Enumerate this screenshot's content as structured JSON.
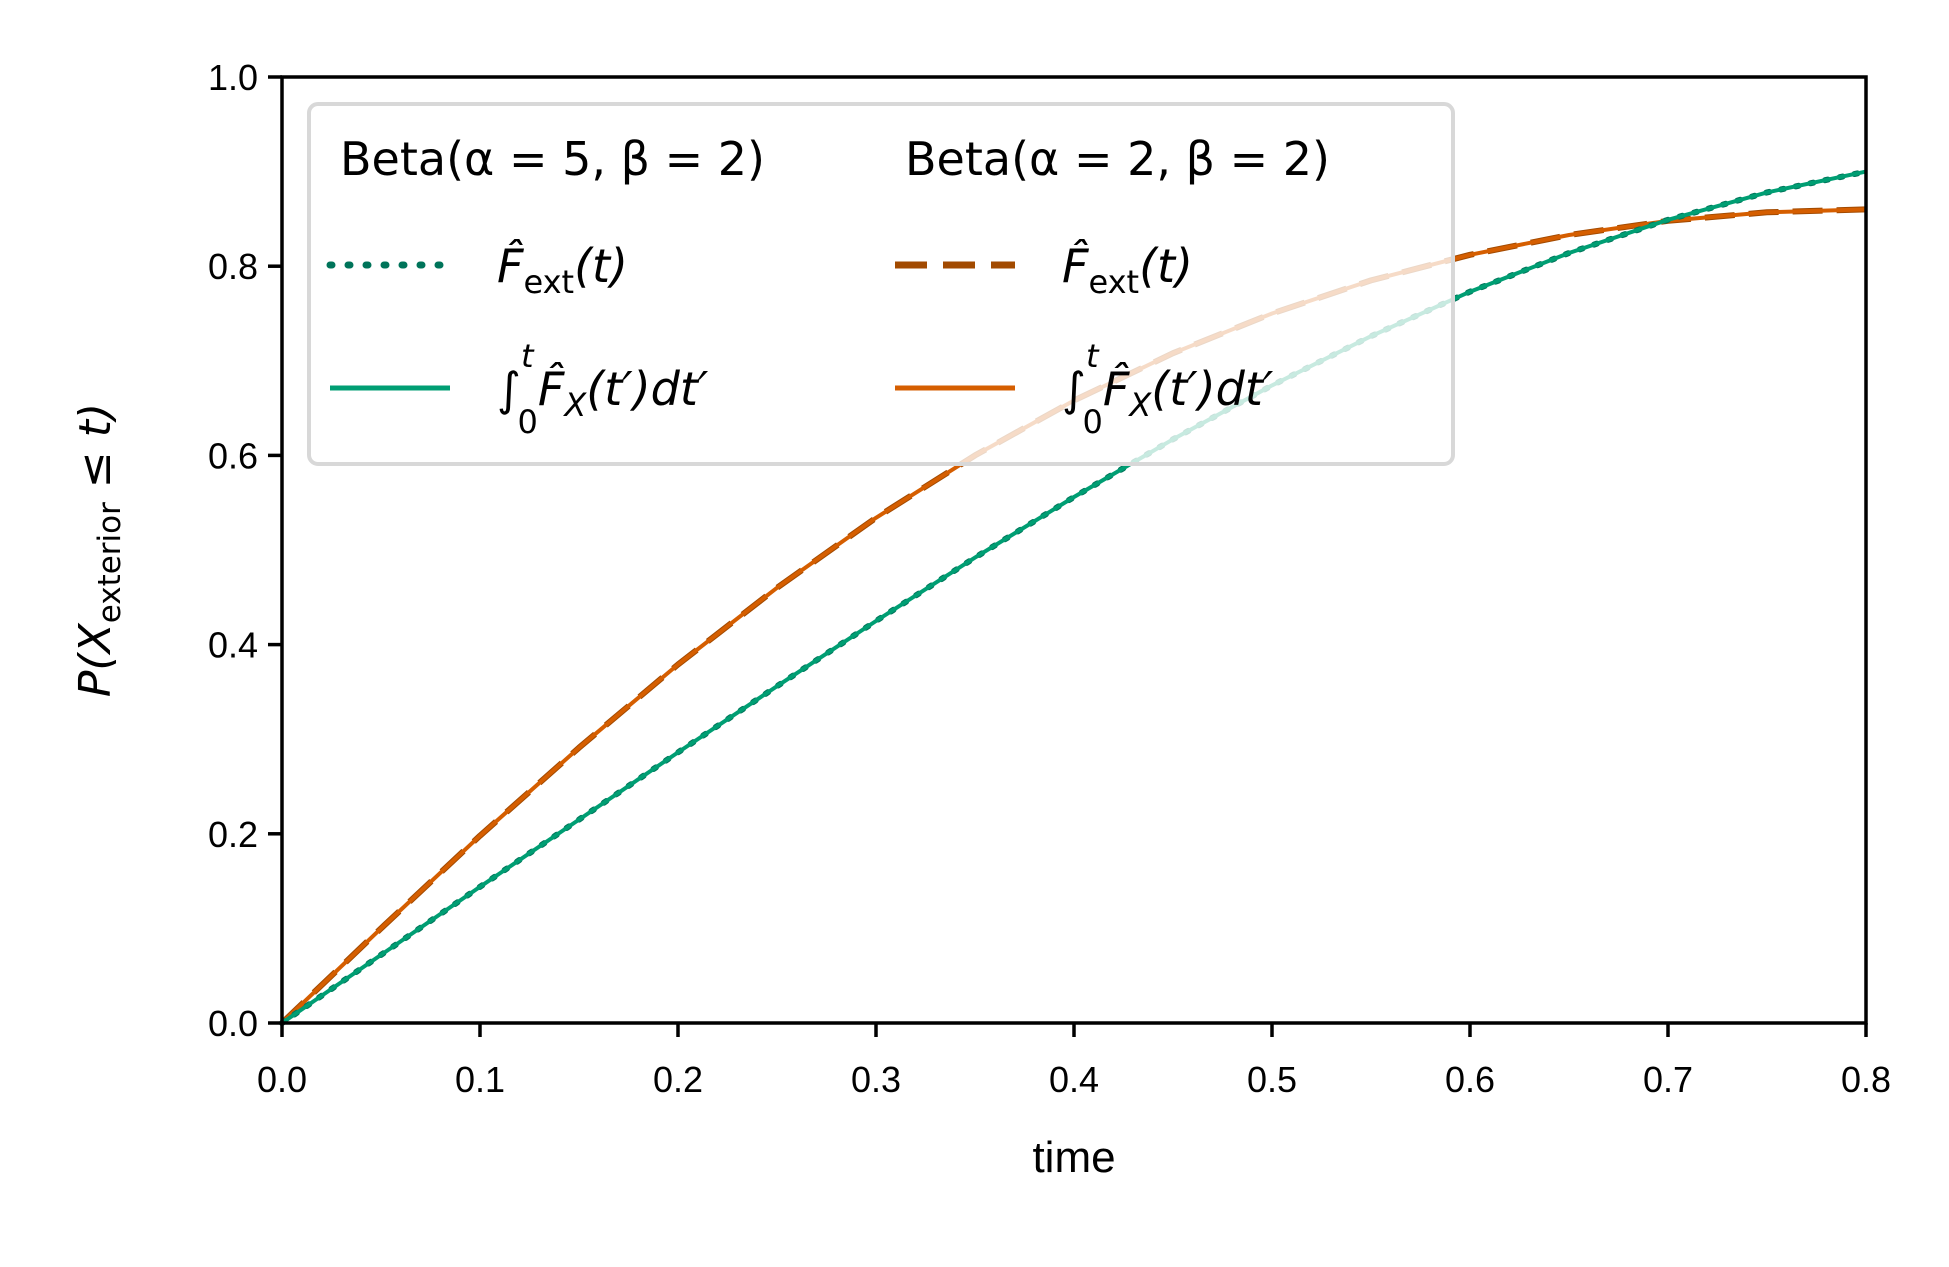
{
  "chart_data": {
    "type": "line",
    "xlabel": "time",
    "ylabel": {
      "main": "P(X",
      "subscript": "exterior",
      "tail": " ≤ t)"
    },
    "xlim": [
      0.0,
      0.8
    ],
    "ylim": [
      0.0,
      1.0
    ],
    "xticks": [
      "0.0",
      "0.1",
      "0.2",
      "0.3",
      "0.4",
      "0.5",
      "0.6",
      "0.7",
      "0.8"
    ],
    "yticks": [
      "0.0",
      "0.2",
      "0.4",
      "0.6",
      "0.8",
      "1.0"
    ],
    "grid": false,
    "legend_position": "upper-left",
    "legend_columns": [
      {
        "title": "Beta(α = 5, β = 2)"
      },
      {
        "title": "Beta(α = 2, β = 2)"
      }
    ],
    "legend_labels": {
      "estimate": {
        "main": "F̂",
        "sub": "ext",
        "tail": "(t)"
      },
      "integral": {
        "int": "∫",
        "upper": "t",
        "lower": "0",
        "main": "F̂",
        "sub": "X",
        "tail": "(t′)dt′"
      }
    },
    "series": [
      {
        "group": "Beta(α = 5, β = 2)",
        "kind": "estimate",
        "style": "dotted",
        "color": "#00745a",
        "x": [
          0.0,
          0.05,
          0.1,
          0.15,
          0.2,
          0.25,
          0.3,
          0.35,
          0.4,
          0.45,
          0.5,
          0.55,
          0.6,
          0.65,
          0.7,
          0.75,
          0.8
        ],
        "y": [
          0.0,
          0.072,
          0.144,
          0.215,
          0.286,
          0.356,
          0.425,
          0.492,
          0.556,
          0.617,
          0.674,
          0.726,
          0.773,
          0.814,
          0.849,
          0.878,
          0.9
        ]
      },
      {
        "group": "Beta(α = 5, β = 2)",
        "kind": "integral",
        "style": "solid",
        "color": "#009e73",
        "x": [
          0.0,
          0.05,
          0.1,
          0.15,
          0.2,
          0.25,
          0.3,
          0.35,
          0.4,
          0.45,
          0.5,
          0.55,
          0.6,
          0.65,
          0.7,
          0.75,
          0.8
        ],
        "y": [
          0.0,
          0.072,
          0.144,
          0.215,
          0.286,
          0.356,
          0.425,
          0.492,
          0.556,
          0.617,
          0.674,
          0.726,
          0.773,
          0.814,
          0.849,
          0.878,
          0.9
        ]
      },
      {
        "group": "Beta(α = 2, β = 2)",
        "kind": "estimate",
        "style": "dashed",
        "color": "#a24a00",
        "x": [
          0.0,
          0.05,
          0.1,
          0.15,
          0.2,
          0.25,
          0.3,
          0.35,
          0.4,
          0.45,
          0.5,
          0.55,
          0.6,
          0.65,
          0.7,
          0.75,
          0.8
        ],
        "y": [
          0.0,
          0.1,
          0.198,
          0.291,
          0.379,
          0.46,
          0.534,
          0.6,
          0.658,
          0.708,
          0.75,
          0.785,
          0.812,
          0.833,
          0.848,
          0.857,
          0.86
        ]
      },
      {
        "group": "Beta(α = 2, β = 2)",
        "kind": "integral",
        "style": "solid",
        "color": "#d55e00",
        "x": [
          0.0,
          0.05,
          0.1,
          0.15,
          0.2,
          0.25,
          0.3,
          0.35,
          0.4,
          0.45,
          0.5,
          0.55,
          0.6,
          0.65,
          0.7,
          0.75,
          0.8
        ],
        "y": [
          0.0,
          0.1,
          0.198,
          0.291,
          0.379,
          0.46,
          0.534,
          0.6,
          0.658,
          0.708,
          0.75,
          0.785,
          0.812,
          0.833,
          0.848,
          0.857,
          0.86
        ]
      }
    ]
  }
}
